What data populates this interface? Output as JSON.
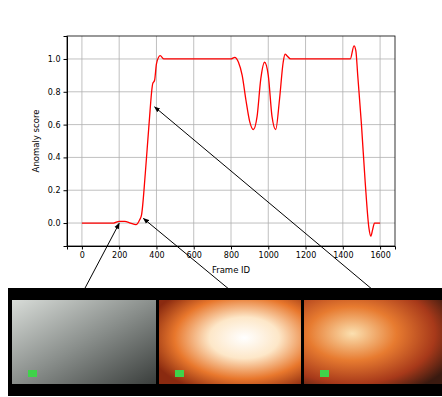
{
  "chart_data": {
    "type": "line",
    "x": [
      0,
      60,
      120,
      170,
      200,
      230,
      260,
      290,
      310,
      320,
      340,
      360,
      380,
      390,
      400,
      420,
      440,
      500,
      600,
      700,
      800,
      820,
      840,
      860,
      880,
      900,
      920,
      940,
      960,
      980,
      1000,
      1020,
      1040,
      1060,
      1080,
      1090,
      1100,
      1120,
      1200,
      1300,
      1400,
      1440,
      1460,
      1470,
      1480,
      1500,
      1520,
      1540,
      1550,
      1560,
      1570,
      1600
    ],
    "values": [
      0.0,
      0.0,
      0.0,
      0.0,
      0.01,
      0.01,
      0.0,
      -0.01,
      0.02,
      0.05,
      0.3,
      0.6,
      0.85,
      0.87,
      0.97,
      1.02,
      1.0,
      1.0,
      1.0,
      1.0,
      1.0,
      1.01,
      0.98,
      0.9,
      0.75,
      0.62,
      0.57,
      0.65,
      0.88,
      0.98,
      0.9,
      0.65,
      0.57,
      0.75,
      0.98,
      1.03,
      1.02,
      1.0,
      1.0,
      1.0,
      1.0,
      1.0,
      1.08,
      1.05,
      0.9,
      0.6,
      0.25,
      -0.03,
      -0.08,
      -0.04,
      0.0,
      0.0
    ],
    "color": "#ff0000",
    "xlabel": "Frame ID",
    "ylabel": "Anomaly score",
    "xlim": [
      -80,
      1680
    ],
    "ylim": [
      -0.14,
      1.14
    ],
    "xticks": [
      0,
      200,
      400,
      600,
      800,
      1000,
      1200,
      1400,
      1600
    ],
    "yticks": [
      {
        "value": 0,
        "label": "0.0"
      },
      {
        "value": 0.2,
        "label": "0.2"
      },
      {
        "value": 0.4,
        "label": "0.4"
      },
      {
        "value": 0.6,
        "label": "0.6"
      },
      {
        "value": 0.8,
        "label": "0.8"
      },
      {
        "value": 1.0,
        "label": "1.0"
      }
    ],
    "grid": true,
    "pointers": [
      {
        "x": 200,
        "y": 0.01
      },
      {
        "x": 330,
        "y": 0.04
      },
      {
        "x": 390,
        "y": 0.72
      }
    ]
  }
}
